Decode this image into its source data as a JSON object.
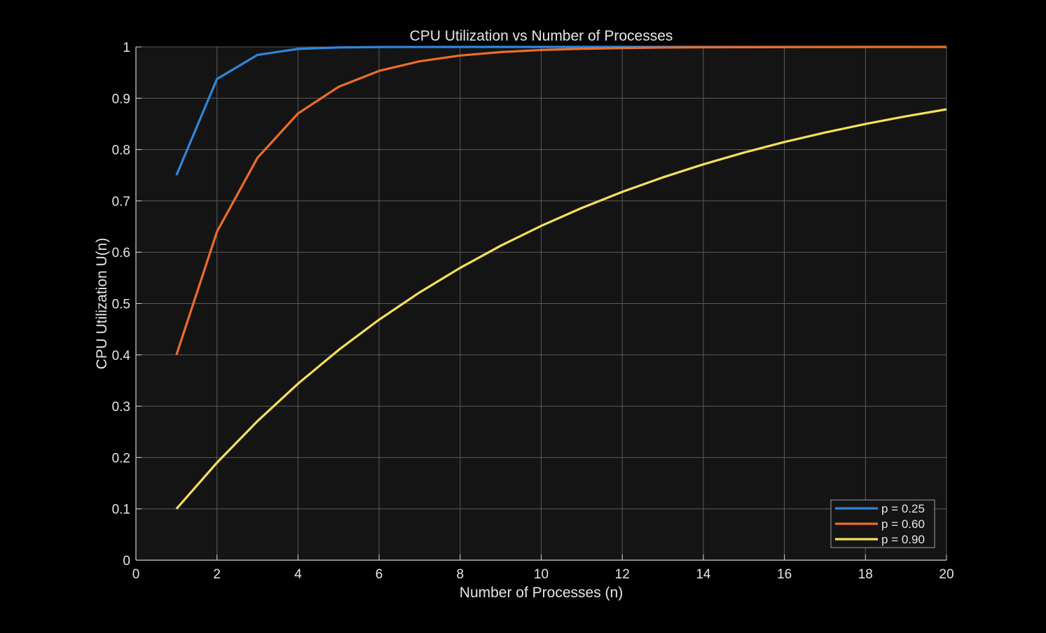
{
  "chart_data": {
    "type": "line",
    "title": "CPU Utilization vs Number of Processes",
    "xlabel": "Number of Processes (n)",
    "ylabel": "CPU Utilization U(n)",
    "xlim": [
      0,
      20
    ],
    "ylim": [
      0,
      1
    ],
    "xticks": [
      0,
      2,
      4,
      6,
      8,
      10,
      12,
      14,
      16,
      18,
      20
    ],
    "yticks": [
      0,
      0.1,
      0.2,
      0.3,
      0.4,
      0.5,
      0.6,
      0.7,
      0.8,
      0.9,
      1
    ],
    "ytick_labels": [
      "0",
      "0.1",
      "0.2",
      "0.3",
      "0.4",
      "0.5",
      "0.6",
      "0.7",
      "0.8",
      "0.9",
      "1"
    ],
    "grid": true,
    "legend_position": "bottom-right",
    "x": [
      1,
      2,
      3,
      4,
      5,
      6,
      7,
      8,
      9,
      10,
      11,
      12,
      13,
      14,
      15,
      16,
      17,
      18,
      19,
      20
    ],
    "series": [
      {
        "name": "p = 0.25",
        "color": "#2f86d8",
        "values": [
          0.75,
          0.9375,
          0.9844,
          0.9961,
          0.999,
          0.9998,
          0.9999,
          1,
          1,
          1,
          1,
          1,
          1,
          1,
          1,
          1,
          1,
          1,
          1,
          1
        ]
      },
      {
        "name": "p = 0.60",
        "color": "#ea6d2b",
        "values": [
          0.4,
          0.64,
          0.784,
          0.8704,
          0.9222,
          0.9533,
          0.972,
          0.9832,
          0.9899,
          0.994,
          0.9964,
          0.9978,
          0.9987,
          0.9992,
          0.9995,
          0.9997,
          0.9998,
          0.9999,
          0.9999,
          1
        ]
      },
      {
        "name": "p = 0.90",
        "color": "#f5e05a",
        "values": [
          0.1,
          0.19,
          0.271,
          0.3439,
          0.4095,
          0.4686,
          0.5217,
          0.5695,
          0.6126,
          0.6513,
          0.6862,
          0.7176,
          0.7458,
          0.7712,
          0.7941,
          0.8147,
          0.8332,
          0.8499,
          0.8649,
          0.8784
        ]
      }
    ]
  },
  "colors": {
    "page_background": "#000000",
    "plot_background": "#141414",
    "grid": "#5a5a5a",
    "axis": "#d0d0d0",
    "text": "#e6e6e6"
  }
}
